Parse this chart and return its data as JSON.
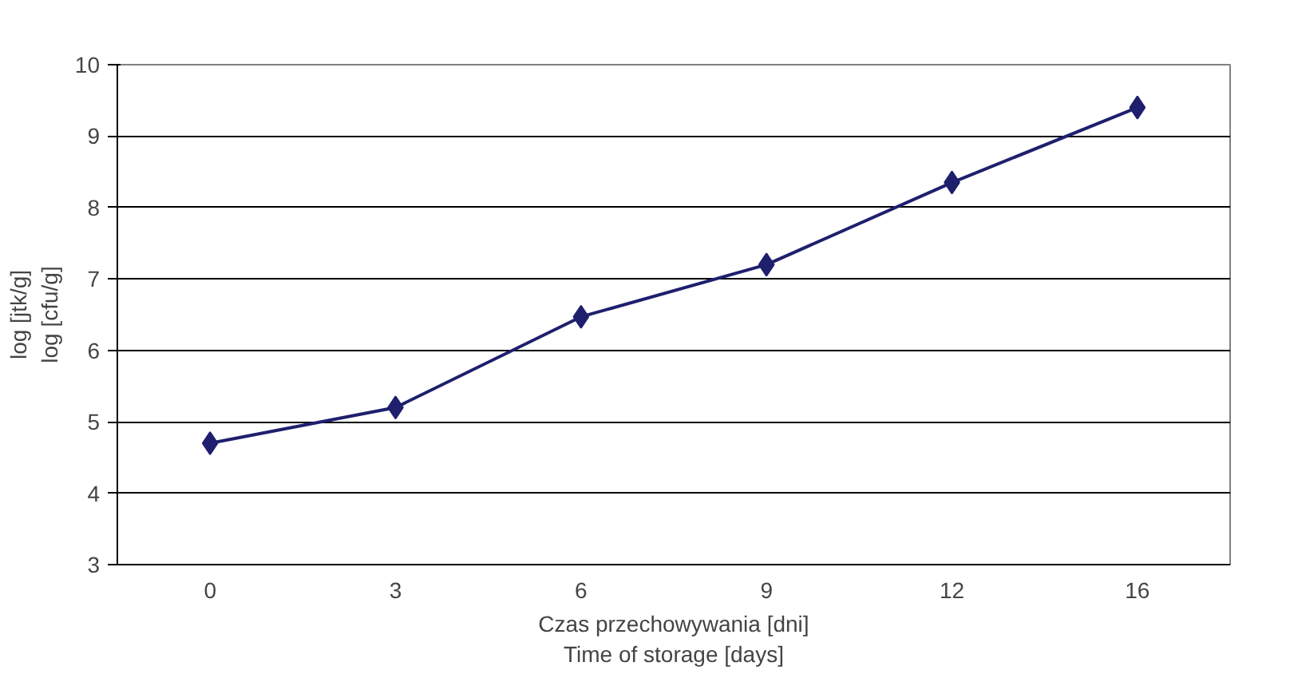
{
  "chart_data": {
    "type": "line",
    "categories": [
      "0",
      "3",
      "6",
      "9",
      "12",
      "16"
    ],
    "series": [
      {
        "color": "#1f1f6e",
        "values": [
          4.7,
          5.2,
          6.47,
          7.2,
          8.35,
          9.4
        ]
      }
    ],
    "xlabel": "Czas przechowywania [dni]\nTime of storage [days]",
    "ylabel": "log [jtk/g]\nlog [cfu/g]",
    "ylim": [
      3,
      10
    ],
    "yticks": [
      3,
      4,
      5,
      6,
      7,
      8,
      9,
      10
    ],
    "grid": "y",
    "marker": "diamond",
    "line_style": "solid"
  }
}
